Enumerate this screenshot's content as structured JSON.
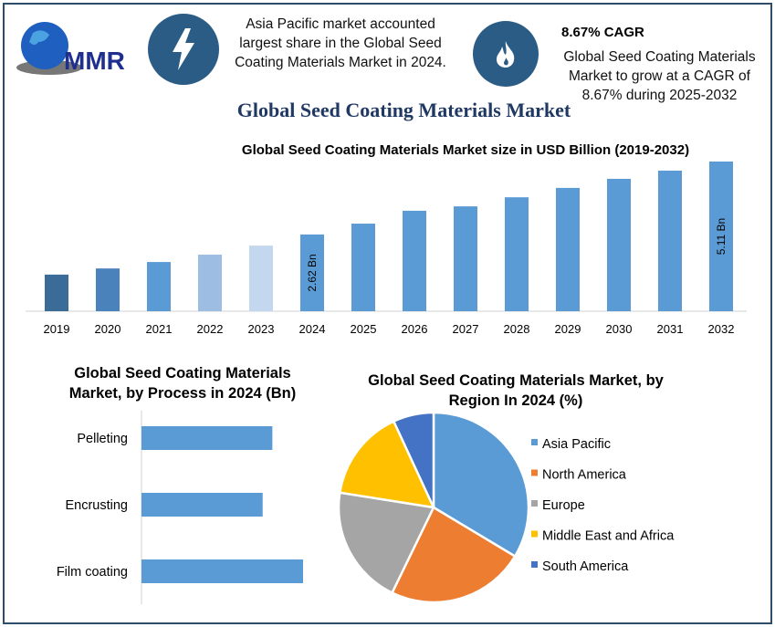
{
  "header": {
    "logo_text": "MMR",
    "note1": "Asia Pacific market accounted largest share in the Global Seed Coating Materials Market in 2024.",
    "cagr_title": "8.67% CAGR",
    "note2": "Global Seed Coating Materials Market to grow at a CAGR of 8.67% during 2025-2032",
    "icons": [
      "lightning-icon",
      "flame-icon"
    ]
  },
  "main_title": "Global Seed Coating Materials Market",
  "chart_data": [
    {
      "type": "bar",
      "title": "Global Seed Coating Materials Market size in USD Billion (2019-2032)",
      "categories": [
        "2019",
        "2020",
        "2021",
        "2022",
        "2023",
        "2024",
        "2025",
        "2026",
        "2027",
        "2028",
        "2029",
        "2030",
        "2031",
        "2032"
      ],
      "values": [
        1.25,
        1.46,
        1.68,
        1.93,
        2.24,
        2.62,
        2.99,
        3.43,
        3.58,
        3.89,
        4.21,
        4.52,
        4.8,
        5.11
      ],
      "colors": [
        "#3b6c98",
        "#4a82bb",
        "#5b9bd5",
        "#9dbde2",
        "#c3d7ee",
        "#5b9bd5",
        "#5b9bd5",
        "#5b9bd5",
        "#5b9bd5",
        "#5b9bd5",
        "#5b9bd5",
        "#5b9bd5",
        "#5b9bd5",
        "#5b9bd5"
      ],
      "data_labels": {
        "2024": "2.62 Bn",
        "2032": "5.11 Bn"
      },
      "ylim": [
        0,
        5.11
      ],
      "grid": false
    },
    {
      "type": "bar",
      "orientation": "horizontal",
      "title": "Global Seed Coating Materials Market, by Process in 2024 (Bn)",
      "categories": [
        "Pelleting",
        "Encrusting",
        "Film coating"
      ],
      "values": [
        0.81,
        0.75,
        1.0
      ],
      "color": "#5b9bd5",
      "grid": false
    },
    {
      "type": "pie",
      "title": "Global Seed Coating Materials Market, by Region In 2024 (%)",
      "categories": [
        "Asia Pacific",
        "North America",
        "Europe",
        "Middle East and Africa",
        "South America"
      ],
      "values": [
        33.6,
        23.6,
        20.3,
        15.6,
        6.9
      ],
      "colors": [
        "#5b9bd5",
        "#ed7d31",
        "#a5a5a5",
        "#ffc000",
        "#4472c4"
      ],
      "legend": "right"
    }
  ]
}
